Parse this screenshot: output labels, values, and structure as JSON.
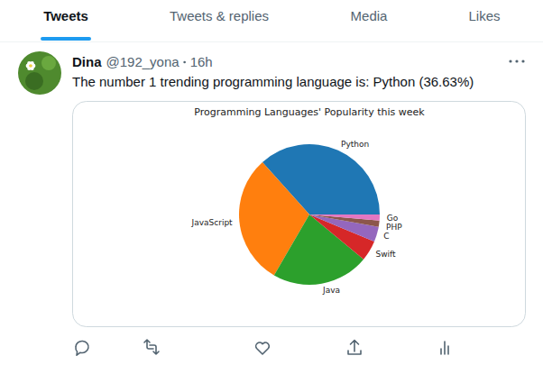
{
  "tabs": [
    "Tweets",
    "Tweets & replies",
    "Media",
    "Likes"
  ],
  "tweet": {
    "name": "Dina",
    "handle": "@192_yona",
    "time": "16h",
    "text": "The number 1 trending programming language is: Python (36.63%)"
  },
  "chart_data": {
    "type": "pie",
    "title": "Programming Languages' Popularity this week",
    "categories": [
      "Python",
      "JavaScript",
      "Java",
      "Swift",
      "C",
      "PHP",
      "Go"
    ],
    "values": [
      36.63,
      30,
      22.37,
      4.7,
      3.5,
      1.4,
      1.4
    ],
    "colors": [
      "#1f77b4",
      "#ff7f0e",
      "#2ca02c",
      "#d62728",
      "#9467bd",
      "#8c564b",
      "#e377c2"
    ]
  }
}
